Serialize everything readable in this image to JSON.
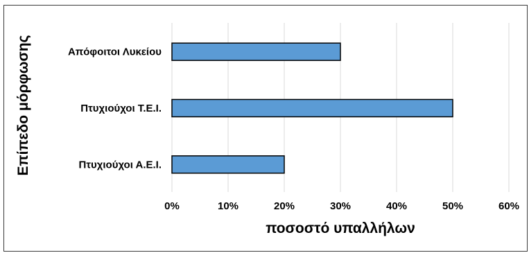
{
  "chart_data": {
    "type": "bar",
    "orientation": "horizontal",
    "categories": [
      "Απόφοιτοι Λυκείου",
      "Πτυχιούχοι Τ.Ε.Ι.",
      "Πτυχιούχοι Α.Ε.Ι."
    ],
    "values": [
      30,
      50,
      20
    ],
    "xlabel": "ποσοστό υπαλλήλων",
    "ylabel": "Επίπεδο μόρφωσης",
    "xlim": [
      0,
      60
    ],
    "xticks": [
      0,
      10,
      20,
      30,
      40,
      50,
      60
    ],
    "tick_labels": [
      "0%",
      "10%",
      "20%",
      "30%",
      "40%",
      "50%",
      "60%"
    ],
    "value_format": "percent",
    "grid": "vertical",
    "legend": "none",
    "bar_color": "#5b9bd5",
    "bar_edge_color": "#000000",
    "gridline_color": "#d9d9d9"
  }
}
